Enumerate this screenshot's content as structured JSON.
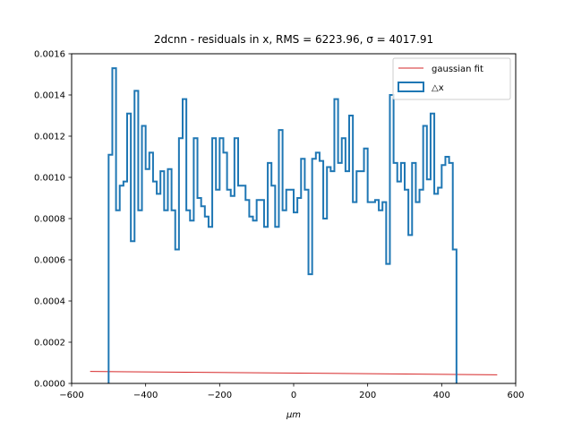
{
  "chart_data": {
    "type": "step",
    "title": "2dcnn - residuals in x, RMS = 6223.96, σ = 4017.91",
    "xlabel": "μm",
    "ylabel": "",
    "xlim": [
      -600,
      600
    ],
    "ylim": [
      0,
      0.0016
    ],
    "x_ticks": [
      -600,
      -400,
      -200,
      0,
      200,
      400,
      600
    ],
    "x_tick_labels": [
      "−600",
      "−400",
      "−200",
      "0",
      "200",
      "400",
      "600"
    ],
    "y_ticks": [
      0,
      0.0002,
      0.0004,
      0.0006,
      0.0008,
      0.001,
      0.0012,
      0.0014,
      0.0016
    ],
    "y_tick_labels": [
      "0.0000",
      "0.0002",
      "0.0004",
      "0.0006",
      "0.0008",
      "0.0010",
      "0.0012",
      "0.0014",
      "0.0016"
    ],
    "grid": false,
    "legend_position": "top-right",
    "series": [
      {
        "name": "gaussian fit",
        "type": "line",
        "color": "#d62728",
        "x": [
          -550,
          550
        ],
        "y": [
          5.8e-05,
          4.2e-05
        ]
      },
      {
        "name": "△x",
        "type": "step-histogram",
        "color": "#1f77b4",
        "bin_start": -500,
        "bin_width": 10,
        "values": [
          0.00111,
          0.00153,
          0.00084,
          0.00096,
          0.00098,
          0.00131,
          0.00069,
          0.00142,
          0.00084,
          0.00125,
          0.00104,
          0.00112,
          0.00098,
          0.00092,
          0.00103,
          0.00084,
          0.00104,
          0.00084,
          0.00065,
          0.00119,
          0.00138,
          0.00084,
          0.00079,
          0.00119,
          0.0009,
          0.00086,
          0.00081,
          0.00076,
          0.00119,
          0.00094,
          0.00119,
          0.00112,
          0.00094,
          0.00091,
          0.00119,
          0.00096,
          0.00096,
          0.00089,
          0.00081,
          0.00079,
          0.00089,
          0.00089,
          0.00076,
          0.00107,
          0.00096,
          0.00076,
          0.00123,
          0.00084,
          0.00094,
          0.00094,
          0.00083,
          0.0009,
          0.00109,
          0.00094,
          0.00053,
          0.00109,
          0.00112,
          0.00108,
          0.0008,
          0.00105,
          0.00103,
          0.00138,
          0.00107,
          0.00119,
          0.00103,
          0.0013,
          0.00088,
          0.00103,
          0.00103,
          0.00114,
          0.00088,
          0.00088,
          0.00089,
          0.00084,
          0.00088,
          0.00058,
          0.0014,
          0.00107,
          0.00098,
          0.00107,
          0.00094,
          0.00072,
          0.00107,
          0.00088,
          0.00094,
          0.00125,
          0.00099,
          0.00131,
          0.00092,
          0.00095,
          0.00106,
          0.0011,
          0.00107,
          0.00065
        ]
      }
    ]
  }
}
